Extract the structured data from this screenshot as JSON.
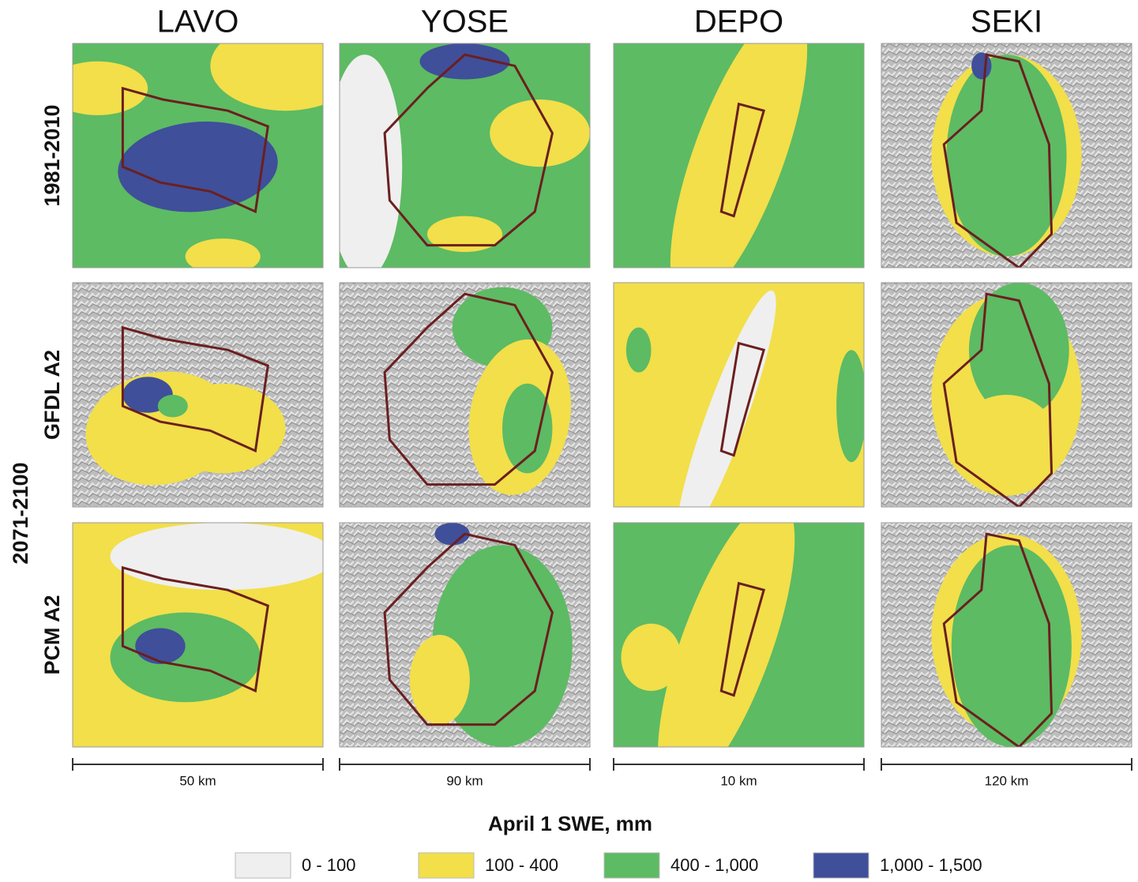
{
  "columns": [
    {
      "title": "LAVO",
      "scale": "50 km"
    },
    {
      "title": "YOSE",
      "scale": "90 km"
    },
    {
      "title": "DEPO",
      "scale": "10 km"
    },
    {
      "title": "SEKI",
      "scale": "120 km"
    }
  ],
  "rows": [
    {
      "label": "1981-2010"
    },
    {
      "label": "GFDL A2"
    },
    {
      "label": "PCM A2"
    }
  ],
  "row_group": "2071-2100",
  "legend": {
    "title": "April 1 SWE, mm",
    "items": [
      {
        "label": "0 - 100",
        "color": "#efefef"
      },
      {
        "label": "100 - 400",
        "color": "#f2df4a"
      },
      {
        "label": "400 - 1,000",
        "color": "#5dbb63"
      },
      {
        "label": "1,000 - 1,500",
        "color": "#3f4f9a"
      }
    ]
  }
}
